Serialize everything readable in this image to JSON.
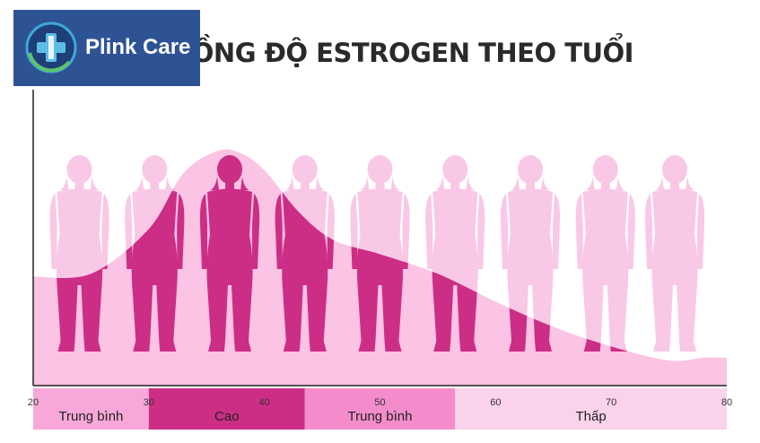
{
  "brand": {
    "name": "Plink Care",
    "logo_icon": "medical-cross-icon"
  },
  "chart_data": {
    "type": "area",
    "title": "NỒNG ĐỘ ESTROGEN THEO TUỔI",
    "xlabel": "",
    "ylabel": "",
    "x_ticks": [
      20,
      30,
      40,
      50,
      60,
      70,
      80
    ],
    "xlim": [
      20,
      80
    ],
    "ylim": [
      0,
      100
    ],
    "grid": false,
    "curve": {
      "x": [
        20,
        25,
        30,
        33,
        36,
        38,
        40,
        43,
        46,
        50,
        55,
        60,
        65,
        70,
        75,
        78,
        80
      ],
      "y": [
        39,
        40,
        56,
        76,
        84,
        83,
        77,
        62,
        52,
        47,
        40,
        30,
        21,
        14,
        9,
        10,
        10
      ]
    },
    "figure_ages": [
      24,
      30.5,
      37,
      43.5,
      50,
      56.5,
      63,
      69.5,
      75.5
    ],
    "bands": [
      {
        "label": "Trung bình",
        "from": 20,
        "to": 30,
        "color": "#f7a8d8"
      },
      {
        "label": "Cao",
        "from": 30,
        "to": 43.5,
        "color": "#cc2e86"
      },
      {
        "label": "Trung bình",
        "from": 43.5,
        "to": 56.5,
        "color": "#f48ccb"
      },
      {
        "label": "Thấp",
        "from": 56.5,
        "to": 80,
        "color": "#fbd2eb"
      }
    ],
    "colors": {
      "area": "#fbc3e4",
      "figure_light": "#f9c8e6",
      "figure_dark": "#cc2e86",
      "axis": "#222222"
    }
  }
}
